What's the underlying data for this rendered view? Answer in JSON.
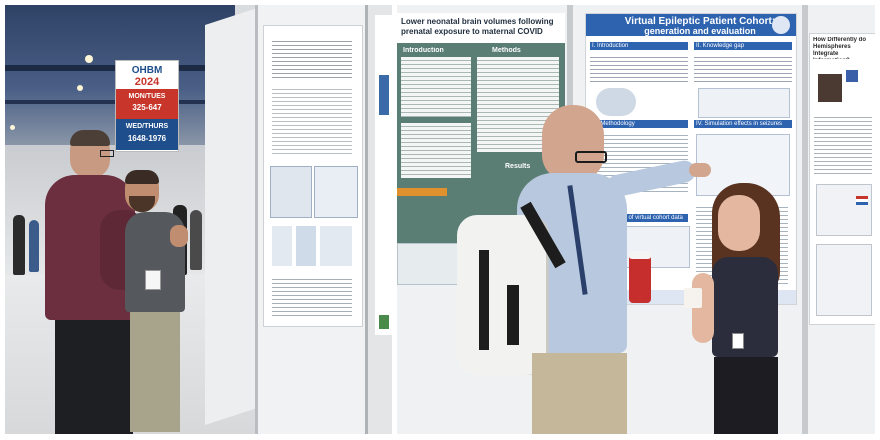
{
  "left_photo": {
    "banner": {
      "line1": "OHBM",
      "line2": "2024",
      "line3": "MON/TUES",
      "line4": "325-647",
      "line5": "WED/THURS",
      "line6": "1648-1976"
    }
  },
  "right_photo": {
    "poster_left": {
      "title": "Lower neonatal brain volumes following prenatal exposure to maternal COVID",
      "section_intro": "Introduction",
      "section_methods": "Methods",
      "section_results": "Results"
    },
    "poster_center": {
      "title_line1": "Virtual Epileptic Patient Cohort:",
      "title_line2": "generation and evaluation",
      "section_1": "I. Introduction",
      "section_2": "II. Knowledge gap",
      "section_3": "III. Methodology",
      "section_4": "IV. Simulation effects in seizures",
      "section_5": "V. Evaluation of virtual cohort data"
    },
    "poster_right": {
      "title": "How Differently do Hemispheres Integrate Information?"
    }
  },
  "colors": {
    "ceiling": "#3b4f72",
    "banner_red": "#c7352b",
    "banner_blue": "#1f4e8c",
    "poster_teal": "#5a7d74",
    "poster_blue": "#2e63b0",
    "shirt_maroon": "#6b2f3f",
    "shirt_blue": "#b7c8df"
  }
}
